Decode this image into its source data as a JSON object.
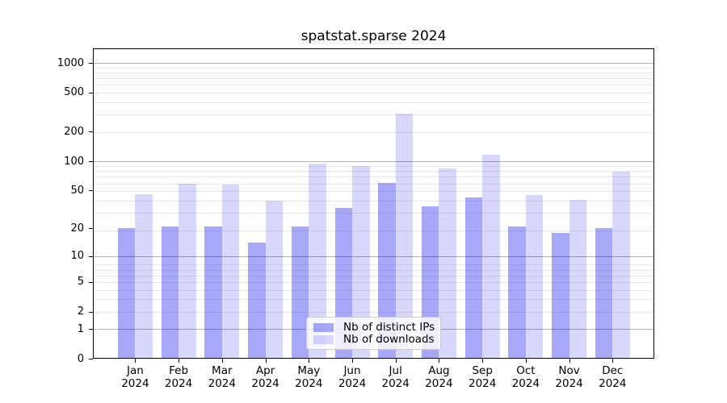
{
  "chart_data": {
    "type": "bar",
    "title": "spatstat.sparse 2024",
    "categories": [
      "Jan",
      "Feb",
      "Mar",
      "Apr",
      "May",
      "Jun",
      "Jul",
      "Aug",
      "Sep",
      "Oct",
      "Nov",
      "Dec"
    ],
    "category_year": "2024",
    "series": [
      {
        "name": "Nb of distinct IPs",
        "key": "distinct-ips",
        "color_hex": "#a9a9f8",
        "color_rgba": "rgba(15,15,235,0.36)",
        "values": [
          20,
          21,
          21,
          14,
          21,
          33,
          60,
          34,
          42,
          21,
          18,
          20
        ]
      },
      {
        "name": "Nb of downloads",
        "key": "downloads",
        "color_hex": "#d9d9fc",
        "color_rgba": "rgba(15,15,235,0.16)",
        "values": [
          46,
          59,
          58,
          39,
          95,
          89,
          305,
          84,
          117,
          45,
          40,
          78
        ]
      }
    ],
    "yscale": "log10(value+1)",
    "ylim": [
      0,
      1000
    ],
    "yticks": [
      0,
      1,
      2,
      5,
      10,
      20,
      50,
      100,
      200,
      500,
      1000
    ],
    "major_gridlines": [
      1,
      10,
      100,
      1000
    ],
    "grid": true,
    "legend_position": "lower center",
    "xlabel": "",
    "ylabel": ""
  },
  "colors": {
    "grid_major": "#b0b0b0",
    "grid_minor": "#e9e9e9",
    "axis": "#000000",
    "legend_bg": "rgba(255,255,255,0.8)",
    "legend_border": "#cccccc",
    "title": "#000000"
  }
}
